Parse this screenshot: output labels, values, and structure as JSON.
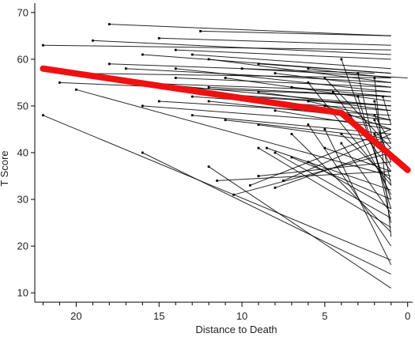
{
  "chart_data": {
    "type": "line",
    "title": "",
    "xlabel": "Distance to Death",
    "ylabel": "T Score",
    "x_reversed": true,
    "xlim": [
      22.5,
      -0.3
    ],
    "ylim": [
      8,
      72
    ],
    "x_ticks": [
      20,
      15,
      10,
      5,
      0
    ],
    "y_ticks": [
      10,
      20,
      30,
      40,
      50,
      60,
      70
    ],
    "grid": false,
    "legend": "none",
    "colors": {
      "individual": "#000000",
      "mean": "#ee1111"
    },
    "mean_trajectory": {
      "x": [
        22,
        4,
        0
      ],
      "y": [
        58,
        48.5,
        36.3
      ]
    },
    "individual_trajectories": [
      {
        "x": [
          18,
          1
        ],
        "y": [
          67.5,
          65
        ]
      },
      {
        "x": [
          12.5,
          1
        ],
        "y": [
          66,
          65
        ]
      },
      {
        "x": [
          15,
          1
        ],
        "y": [
          64.5,
          63
        ]
      },
      {
        "x": [
          22,
          1
        ],
        "y": [
          63,
          62
        ]
      },
      {
        "x": [
          19,
          1
        ],
        "y": [
          64,
          61
        ]
      },
      {
        "x": [
          14,
          1
        ],
        "y": [
          62,
          60
        ]
      },
      {
        "x": [
          16,
          1
        ],
        "y": [
          61,
          57
        ]
      },
      {
        "x": [
          13,
          1
        ],
        "y": [
          61,
          58
        ]
      },
      {
        "x": [
          20,
          1
        ],
        "y": [
          57,
          56
        ]
      },
      {
        "x": [
          18,
          2
        ],
        "y": [
          59,
          57
        ]
      },
      {
        "x": [
          12,
          1
        ],
        "y": [
          60,
          55
        ]
      },
      {
        "x": [
          10,
          0
        ],
        "y": [
          58,
          56
        ]
      },
      {
        "x": [
          21,
          1
        ],
        "y": [
          55,
          52
        ]
      },
      {
        "x": [
          17,
          1
        ],
        "y": [
          55,
          53
        ]
      },
      {
        "x": [
          14,
          1
        ],
        "y": [
          56,
          54
        ]
      },
      {
        "x": [
          11,
          1
        ],
        "y": [
          56,
          51
        ]
      },
      {
        "x": [
          13,
          1
        ],
        "y": [
          53,
          50
        ]
      },
      {
        "x": [
          9,
          1
        ],
        "y": [
          53,
          49
        ]
      },
      {
        "x": [
          7,
          1
        ],
        "y": [
          54,
          52
        ]
      },
      {
        "x": [
          15,
          1
        ],
        "y": [
          51,
          48
        ]
      },
      {
        "x": [
          12,
          1
        ],
        "y": [
          51,
          47
        ]
      },
      {
        "x": [
          10,
          1
        ],
        "y": [
          52,
          50
        ]
      },
      {
        "x": [
          6,
          1
        ],
        "y": [
          51,
          47
        ]
      },
      {
        "x": [
          8,
          1
        ],
        "y": [
          49,
          45
        ]
      },
      {
        "x": [
          13,
          1
        ],
        "y": [
          48,
          44
        ]
      },
      {
        "x": [
          11,
          1
        ],
        "y": [
          47,
          43
        ]
      },
      {
        "x": [
          9,
          1
        ],
        "y": [
          46,
          42
        ]
      },
      {
        "x": [
          5,
          1
        ],
        "y": [
          50,
          45
        ]
      },
      {
        "x": [
          20,
          1
        ],
        "y": [
          53.5,
          35
        ]
      },
      {
        "x": [
          22,
          1
        ],
        "y": [
          48,
          17
        ]
      },
      {
        "x": [
          16,
          1
        ],
        "y": [
          40,
          14
        ]
      },
      {
        "x": [
          12,
          1
        ],
        "y": [
          37,
          11
        ]
      },
      {
        "x": [
          9,
          1
        ],
        "y": [
          41,
          24
        ]
      },
      {
        "x": [
          8,
          1
        ],
        "y": [
          40,
          26
        ]
      },
      {
        "x": [
          7,
          1
        ],
        "y": [
          39,
          30
        ]
      },
      {
        "x": [
          8.5,
          1
        ],
        "y": [
          41,
          32
        ]
      },
      {
        "x": [
          6,
          1
        ],
        "y": [
          38,
          28
        ]
      },
      {
        "x": [
          5,
          1
        ],
        "y": [
          41,
          36
        ]
      },
      {
        "x": [
          4,
          1
        ],
        "y": [
          44,
          34
        ]
      },
      {
        "x": [
          3,
          1
        ],
        "y": [
          46,
          40
        ]
      },
      {
        "x": [
          2,
          1
        ],
        "y": [
          47,
          38
        ]
      },
      {
        "x": [
          3.5,
          1
        ],
        "y": [
          48,
          31
        ]
      },
      {
        "x": [
          10.5,
          1
        ],
        "y": [
          31,
          40
        ]
      },
      {
        "x": [
          9.5,
          1
        ],
        "y": [
          33,
          45
        ]
      },
      {
        "x": [
          8,
          1
        ],
        "y": [
          32.5,
          41
        ]
      },
      {
        "x": [
          7.5,
          1
        ],
        "y": [
          34,
          44
        ]
      },
      {
        "x": [
          11.5,
          1
        ],
        "y": [
          34,
          36
        ]
      },
      {
        "x": [
          9,
          1
        ],
        "y": [
          35,
          38
        ]
      },
      {
        "x": [
          4,
          1
        ],
        "y": [
          60,
          30
        ]
      },
      {
        "x": [
          3,
          1
        ],
        "y": [
          57,
          25
        ]
      },
      {
        "x": [
          2,
          1
        ],
        "y": [
          56,
          22
        ]
      },
      {
        "x": [
          6,
          1
        ],
        "y": [
          55,
          33
        ]
      },
      {
        "x": [
          5,
          1
        ],
        "y": [
          56,
          41
        ]
      },
      {
        "x": [
          4.5,
          1
        ],
        "y": [
          53,
          36
        ]
      },
      {
        "x": [
          3,
          1
        ],
        "y": [
          52,
          28
        ]
      },
      {
        "x": [
          2,
          1
        ],
        "y": [
          51,
          33
        ]
      },
      {
        "x": [
          6,
          1
        ],
        "y": [
          46,
          20
        ]
      },
      {
        "x": [
          5,
          1
        ],
        "y": [
          45,
          16
        ]
      },
      {
        "x": [
          7,
          1
        ],
        "y": [
          44,
          23
        ]
      },
      {
        "x": [
          4,
          1
        ],
        "y": [
          42,
          27
        ]
      },
      {
        "x": [
          2,
          1
        ],
        "y": [
          48,
          42
        ]
      },
      {
        "x": [
          1.5,
          1
        ],
        "y": [
          52,
          46
        ]
      },
      {
        "x": [
          2,
          1
        ],
        "y": [
          44,
          37
        ]
      },
      {
        "x": [
          17,
          1
        ],
        "y": [
          58,
          55
        ]
      },
      {
        "x": [
          19,
          1
        ],
        "y": [
          56,
          50
        ]
      },
      {
        "x": [
          14,
          1
        ],
        "y": [
          58,
          53
        ]
      },
      {
        "x": [
          13,
          1
        ],
        "y": [
          52,
          49
        ]
      },
      {
        "x": [
          16,
          1
        ],
        "y": [
          50,
          46
        ]
      },
      {
        "x": [
          12,
          1
        ],
        "y": [
          54,
          52
        ]
      },
      {
        "x": [
          8,
          1
        ],
        "y": [
          57,
          54
        ]
      },
      {
        "x": [
          6,
          1
        ],
        "y": [
          58,
          56
        ]
      },
      {
        "x": [
          9,
          1
        ],
        "y": [
          59,
          57
        ]
      }
    ]
  }
}
